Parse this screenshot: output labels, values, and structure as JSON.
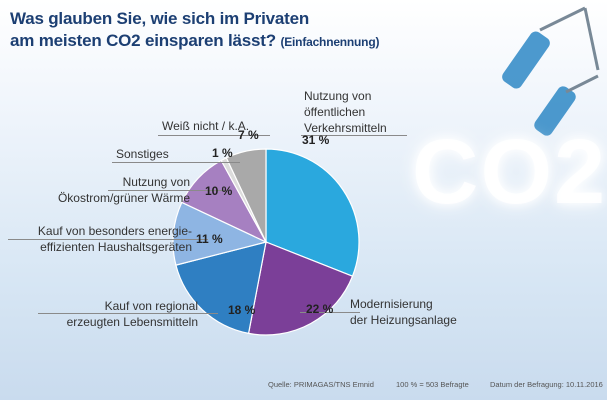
{
  "title_line1": "Was glauben Sie, wie sich im  Privaten",
  "title_line2": "am meisten CO2 einsparen lässt?",
  "title_sub": "(Einfachnennung)",
  "co2_text": "CO2",
  "footer": {
    "source": "Quelle: PRIMAGAS/TNS Emnid",
    "base": "100 % = 503 Befragte",
    "date": "Datum der Befragung: 10.11.2016"
  },
  "chart_data": {
    "type": "pie",
    "slices": [
      {
        "label_lines": [
          "Nutzung von",
          "öffentlichen",
          "Verkehrsmitteln"
        ],
        "value": 31,
        "value_text": "31 %",
        "color": "#2aa8de"
      },
      {
        "label_lines": [
          "Modernisierung",
          "der Heizungsanlage"
        ],
        "value": 22,
        "value_text": "22 %",
        "color": "#7b3f98"
      },
      {
        "label_lines": [
          "Kauf von regional",
          "erzeugten Lebensmitteln"
        ],
        "value": 18,
        "value_text": "18 %",
        "color": "#2f7fc2"
      },
      {
        "label_lines": [
          "Kauf von besonders energie-",
          "effizienten Haushaltsgeräten"
        ],
        "value": 11,
        "value_text": "11 %",
        "color": "#8eb5e3"
      },
      {
        "label_lines": [
          "Nutzung von",
          "Ökostrom/grüner Wärme"
        ],
        "value": 10,
        "value_text": "10 %",
        "color": "#a680c1"
      },
      {
        "label_lines": [
          "Sonstiges"
        ],
        "value": 1,
        "value_text": "1 %",
        "color": "#dcdcdc"
      },
      {
        "label_lines": [
          "Weiß nicht / k.A."
        ],
        "value": 7,
        "value_text": "7 %",
        "color": "#a9a9a9"
      }
    ]
  }
}
